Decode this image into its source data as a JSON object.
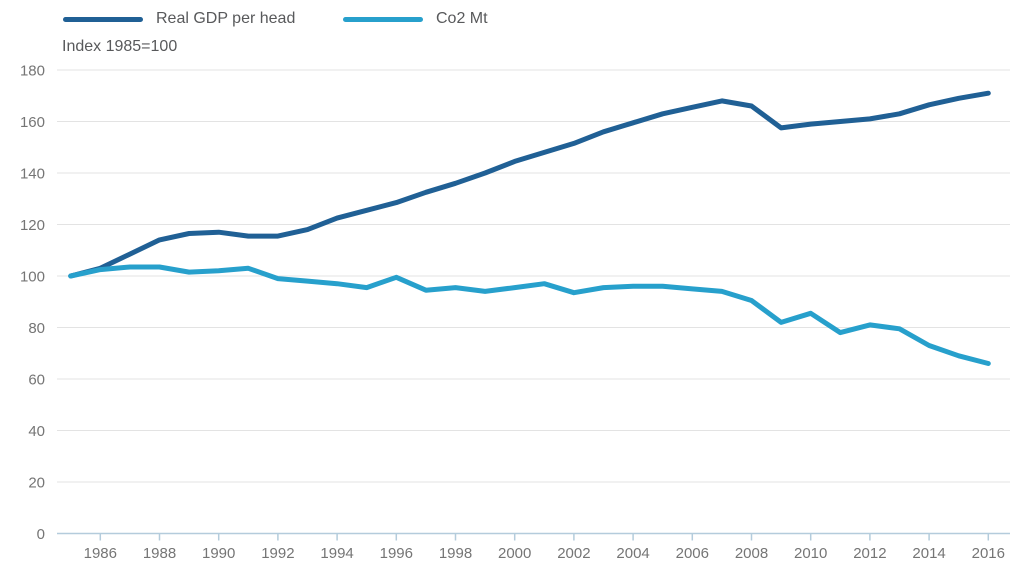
{
  "chart": {
    "subtitle": "Index 1985=100"
  },
  "chart_data": {
    "type": "line",
    "title": "",
    "subtitle": "Index 1985=100",
    "xlabel": "",
    "ylabel": "Index 1985=100",
    "xlim": [
      1985,
      2016
    ],
    "ylim": [
      0,
      180
    ],
    "grid": "horizontal",
    "legend_position": "top-left",
    "x": [
      1985,
      1986,
      1987,
      1988,
      1989,
      1990,
      1991,
      1992,
      1993,
      1994,
      1995,
      1996,
      1997,
      1998,
      1999,
      2000,
      2001,
      2002,
      2003,
      2004,
      2005,
      2006,
      2007,
      2008,
      2009,
      2010,
      2011,
      2012,
      2013,
      2014,
      2015,
      2016
    ],
    "xticks": [
      1986,
      1988,
      1990,
      1992,
      1994,
      1996,
      1998,
      2000,
      2002,
      2004,
      2006,
      2008,
      2010,
      2012,
      2014,
      2016
    ],
    "yticks": [
      0,
      20,
      40,
      60,
      80,
      100,
      120,
      140,
      160,
      180
    ],
    "series": [
      {
        "name": "Real GDP per head",
        "color": "#206095",
        "values": [
          100,
          103,
          108.5,
          114,
          116.5,
          117,
          115.5,
          115.5,
          118,
          122.5,
          125.5,
          128.5,
          132.5,
          136,
          140,
          144.5,
          148,
          151.5,
          156,
          159.5,
          163,
          165.5,
          168,
          166,
          157.5,
          159,
          160,
          161,
          163,
          166.5,
          169,
          171
        ]
      },
      {
        "name": "Co2 Mt",
        "color": "#27A0CC",
        "values": [
          100,
          102.5,
          103.5,
          103.5,
          101.5,
          102,
          103,
          99,
          98,
          97,
          95.5,
          99.5,
          94.5,
          95.5,
          94,
          95.5,
          97,
          93.5,
          95.5,
          96,
          96,
          95,
          94,
          90.5,
          82,
          85.5,
          78,
          81,
          79.5,
          73,
          69,
          66
        ]
      }
    ],
    "style": {
      "grid_color": "#e3e3e3",
      "axis_color": "#b4ccdc",
      "tick_label_color": "#757575",
      "text_color": "#58595b",
      "line_width": 5
    }
  }
}
